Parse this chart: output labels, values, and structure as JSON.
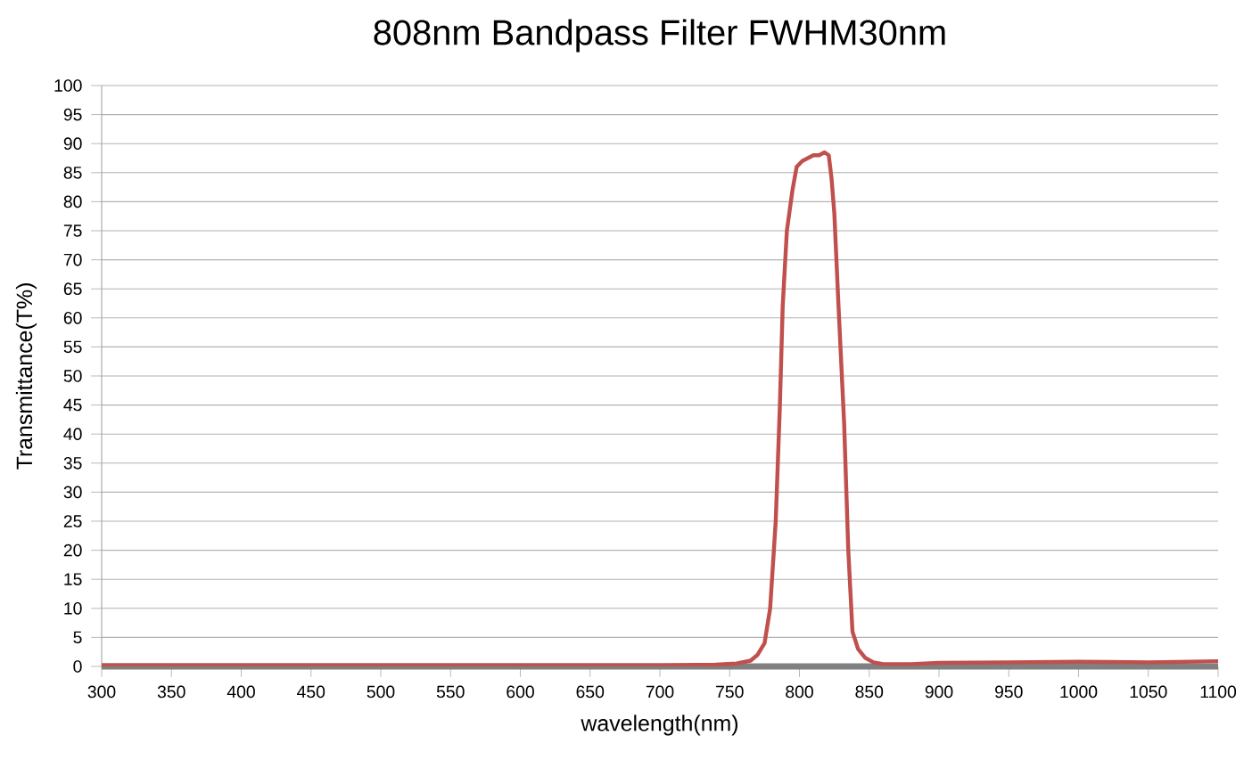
{
  "chart_data": {
    "type": "line",
    "title": "808nm Bandpass Filter     FWHM30nm",
    "xlabel": "wavelength(nm)",
    "ylabel": "Transmittance(T%)",
    "series": [
      {
        "color": "#c0504d",
        "x": [
          300,
          400,
          500,
          600,
          700,
          740,
          755,
          765,
          770,
          775,
          779,
          783,
          786,
          788,
          791,
          795,
          798,
          802,
          806,
          810,
          814,
          818,
          821,
          823,
          825,
          828,
          832,
          835,
          838,
          842,
          847,
          853,
          860,
          880,
          900,
          950,
          1000,
          1050,
          1100
        ],
        "values": [
          0.2,
          0.2,
          0.2,
          0.2,
          0.2,
          0.3,
          0.5,
          1,
          2,
          4,
          10,
          25,
          45,
          62,
          75,
          82,
          86,
          87,
          87.5,
          88,
          88,
          88.5,
          88,
          84,
          78,
          62,
          42,
          20,
          6,
          3,
          1.5,
          0.7,
          0.4,
          0.4,
          0.6,
          0.7,
          0.8,
          0.7,
          0.9
        ]
      }
    ],
    "xlim": [
      300,
      1100
    ],
    "xticks": [
      300,
      350,
      400,
      450,
      500,
      550,
      600,
      650,
      700,
      750,
      800,
      850,
      900,
      950,
      1000,
      1050,
      1100
    ],
    "ylim": [
      0,
      100
    ],
    "yticks": [
      0,
      5,
      10,
      15,
      20,
      25,
      30,
      35,
      40,
      45,
      50,
      55,
      60,
      65,
      70,
      75,
      80,
      85,
      90,
      95,
      100
    ],
    "grid": "y",
    "marker": "none",
    "line_style": "solid"
  }
}
